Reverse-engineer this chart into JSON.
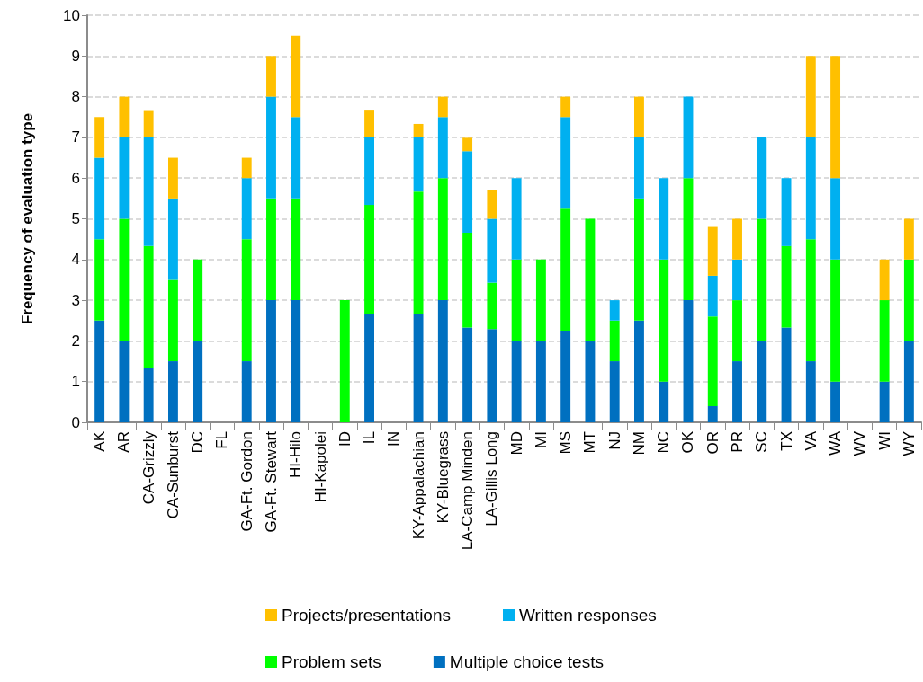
{
  "chart_data": {
    "type": "bar",
    "stacked": true,
    "ylabel": "Frequency of evaluation type",
    "categories": [
      "AK",
      "AR",
      "CA-Grizzly",
      "CA-Sunburst",
      "DC",
      "FL",
      "GA-Ft. Gordon",
      "GA-Ft. Stewart",
      "HI-Hilo",
      "HI-Kapolei",
      "ID",
      "IL",
      "IN",
      "KY-Appalachian",
      "KY-Bluegrass",
      "LA-Camp Minden",
      "LA-Gillis Long",
      "MD",
      "MI",
      "MS",
      "MT",
      "NJ",
      "NM",
      "NC",
      "OK",
      "OR",
      "PR",
      "SC",
      "TX",
      "VA",
      "WA",
      "WV",
      "WI",
      "WY"
    ],
    "series": [
      {
        "name": "Multiple choice tests",
        "color": "#0070c0",
        "values": [
          2.5,
          2,
          1.33,
          1.5,
          2,
          0,
          1.5,
          3,
          3,
          0,
          0,
          2.67,
          0,
          2.67,
          3,
          2.33,
          2.29,
          2,
          2,
          2.25,
          2,
          1.5,
          2.5,
          1,
          3,
          0.4,
          1.5,
          2,
          2.33,
          1.5,
          1,
          0,
          1,
          2
        ]
      },
      {
        "name": "Problem sets",
        "color": "#00ff00",
        "values": [
          2,
          3,
          3,
          2,
          2,
          0,
          3,
          2.5,
          2.5,
          0,
          3,
          2.67,
          0,
          3,
          3,
          2.33,
          1.14,
          2,
          2,
          3,
          3,
          1,
          3,
          3,
          3,
          2.2,
          1.5,
          3,
          2,
          3,
          3,
          0,
          2,
          2
        ]
      },
      {
        "name": "Written responses",
        "color": "#00b0f0",
        "values": [
          2,
          2,
          2.67,
          2,
          0,
          0,
          1.5,
          2.5,
          2,
          0,
          0,
          1.67,
          0,
          1.33,
          1.5,
          2,
          1.57,
          2,
          0,
          2.25,
          0,
          0.5,
          1.5,
          2,
          2,
          1,
          1,
          2,
          1.67,
          2.5,
          2,
          0,
          0,
          0
        ]
      },
      {
        "name": "Projects/presentations",
        "color": "#ffc000",
        "values": [
          1,
          1,
          0.67,
          1,
          0,
          0,
          0.5,
          1,
          2,
          0,
          0,
          0.67,
          0,
          0.33,
          0.5,
          0.33,
          0.71,
          0,
          0,
          0.5,
          0,
          0,
          1,
          0,
          0,
          1.2,
          1,
          0,
          0,
          2,
          3,
          0,
          1,
          1
        ]
      }
    ],
    "ylim": [
      0,
      10
    ],
    "yticks": [
      0,
      1,
      2,
      3,
      4,
      5,
      6,
      7,
      8,
      9,
      10
    ],
    "grid": "y",
    "legend": "bottom"
  }
}
